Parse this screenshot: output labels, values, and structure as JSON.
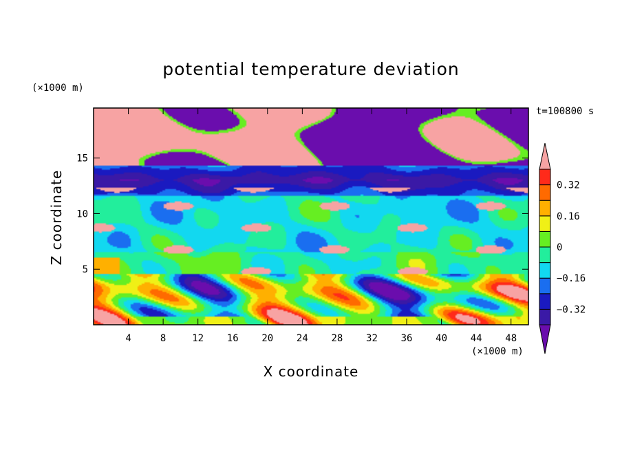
{
  "chart_data": {
    "type": "heatmap",
    "title": "potential temperature deviation",
    "xlabel": "X coordinate",
    "ylabel": "Z coordinate",
    "x_unit": "(×1000 m)",
    "y_unit": "(×1000 m)",
    "time_label": "t=100800 s",
    "xlim": [
      0,
      50
    ],
    "ylim": [
      0,
      19.5
    ],
    "x_ticks": [
      4,
      8,
      12,
      16,
      20,
      24,
      28,
      32,
      36,
      40,
      44,
      48
    ],
    "y_ticks": [
      5,
      10,
      15
    ],
    "colorbar": {
      "levels": [
        -0.4,
        -0.32,
        -0.24,
        -0.16,
        -0.08,
        0,
        0.08,
        0.16,
        0.24,
        0.32,
        0.4
      ],
      "labeled_levels": [
        0.32,
        0.16,
        0,
        -0.16,
        -0.32
      ],
      "labels": [
        "0.32",
        "0.16",
        "0",
        "−0.16",
        "−0.32"
      ],
      "colors": [
        "#6a0dad",
        "#3a19a6",
        "#1a1ac0",
        "#1a6ef0",
        "#12d8f0",
        "#22ee9c",
        "#66ee22",
        "#f0f016",
        "#ffb000",
        "#ff6a00",
        "#ff2a1a",
        "#f7a3a3"
      ]
    }
  }
}
